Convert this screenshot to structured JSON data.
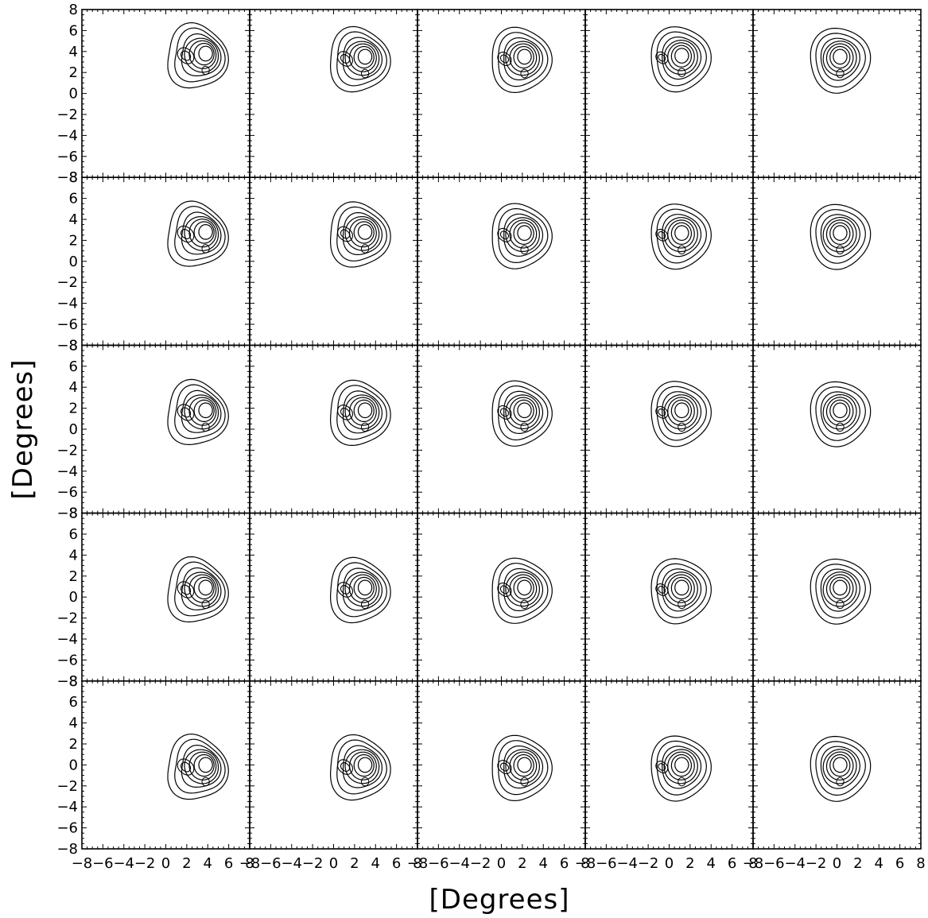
{
  "chart_data": {
    "type": "contour",
    "layout": "5x5 grid of panels with shared axes",
    "xlabel": "[Degrees]",
    "ylabel": "[Degrees]",
    "xlim": [
      -8,
      8
    ],
    "ylim": [
      -8,
      8
    ],
    "x_ticks": [
      -8,
      -6,
      -4,
      -2,
      0,
      2,
      4,
      6,
      8
    ],
    "y_ticks": [
      -8,
      -6,
      -4,
      -2,
      0,
      2,
      4,
      6,
      8
    ],
    "x_tick_labels": [
      "−8",
      "−6",
      "−4",
      "−2",
      "0",
      "2",
      "4",
      "6",
      "8"
    ],
    "y_tick_labels": [
      "−8",
      "−6",
      "−4",
      "−2",
      "0",
      "2",
      "4",
      "6",
      "8"
    ],
    "minor_tick_step": 0.5,
    "line_color": "#000000",
    "background": "#ffffff",
    "grid": false,
    "panels": [
      {
        "row": 0,
        "col": 0,
        "center": [
          3.8,
          3.8
        ],
        "asym": 1.0,
        "slant": 1.0
      },
      {
        "row": 0,
        "col": 1,
        "center": [
          3.0,
          3.5
        ],
        "asym": 0.8,
        "slant": 0.5
      },
      {
        "row": 0,
        "col": 2,
        "center": [
          2.2,
          3.5
        ],
        "asym": 0.6,
        "slant": 0.0
      },
      {
        "row": 0,
        "col": 3,
        "center": [
          1.2,
          3.6
        ],
        "asym": 0.35,
        "slant": -0.5
      },
      {
        "row": 0,
        "col": 4,
        "center": [
          0.3,
          3.5
        ],
        "asym": 0.15,
        "slant": -1.0
      },
      {
        "row": 1,
        "col": 0,
        "center": [
          3.8,
          2.8
        ],
        "asym": 1.0,
        "slant": 1.0
      },
      {
        "row": 1,
        "col": 1,
        "center": [
          3.0,
          2.8
        ],
        "asym": 0.8,
        "slant": 0.5
      },
      {
        "row": 1,
        "col": 2,
        "center": [
          2.2,
          2.7
        ],
        "asym": 0.6,
        "slant": 0.0
      },
      {
        "row": 1,
        "col": 3,
        "center": [
          1.2,
          2.7
        ],
        "asym": 0.35,
        "slant": -0.5
      },
      {
        "row": 1,
        "col": 4,
        "center": [
          0.3,
          2.7
        ],
        "asym": 0.15,
        "slant": -1.0
      },
      {
        "row": 2,
        "col": 0,
        "center": [
          3.8,
          1.8
        ],
        "asym": 1.0,
        "slant": 1.0
      },
      {
        "row": 2,
        "col": 1,
        "center": [
          3.0,
          1.8
        ],
        "asym": 0.8,
        "slant": 0.5
      },
      {
        "row": 2,
        "col": 2,
        "center": [
          2.2,
          1.8
        ],
        "asym": 0.6,
        "slant": 0.0
      },
      {
        "row": 2,
        "col": 3,
        "center": [
          1.2,
          1.8
        ],
        "asym": 0.35,
        "slant": -0.5
      },
      {
        "row": 2,
        "col": 4,
        "center": [
          0.3,
          1.8
        ],
        "asym": 0.15,
        "slant": -1.0
      },
      {
        "row": 3,
        "col": 0,
        "center": [
          3.8,
          0.9
        ],
        "asym": 1.0,
        "slant": 1.0
      },
      {
        "row": 3,
        "col": 1,
        "center": [
          3.0,
          0.9
        ],
        "asym": 0.8,
        "slant": 0.5
      },
      {
        "row": 3,
        "col": 2,
        "center": [
          2.2,
          0.9
        ],
        "asym": 0.6,
        "slant": 0.0
      },
      {
        "row": 3,
        "col": 3,
        "center": [
          1.2,
          0.9
        ],
        "asym": 0.35,
        "slant": -0.5
      },
      {
        "row": 3,
        "col": 4,
        "center": [
          0.3,
          0.9
        ],
        "asym": 0.15,
        "slant": -1.0
      },
      {
        "row": 4,
        "col": 0,
        "center": [
          3.8,
          0.0
        ],
        "asym": 1.0,
        "slant": 1.0
      },
      {
        "row": 4,
        "col": 1,
        "center": [
          3.0,
          0.0
        ],
        "asym": 0.8,
        "slant": 0.5
      },
      {
        "row": 4,
        "col": 2,
        "center": [
          2.2,
          0.0
        ],
        "asym": 0.6,
        "slant": 0.0
      },
      {
        "row": 4,
        "col": 3,
        "center": [
          1.2,
          0.0
        ],
        "asym": 0.35,
        "slant": -0.5
      },
      {
        "row": 4,
        "col": 4,
        "center": [
          0.3,
          0.0
        ],
        "asym": 0.15,
        "slant": -1.0
      }
    ]
  }
}
